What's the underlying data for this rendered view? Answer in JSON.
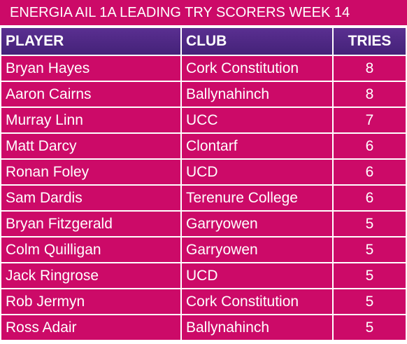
{
  "title": "ENERGIA AIL 1A LEADING TRY SCORERS WEEK 14",
  "table": {
    "header": [
      "PLAYER",
      "CLUB",
      "TRIES"
    ],
    "rows": [
      [
        "Bryan Hayes",
        "Cork Constitution",
        8
      ],
      [
        "Aaron Cairns",
        "Ballynahinch",
        8
      ],
      [
        "Murray Linn",
        "UCC",
        7
      ],
      [
        "Matt Darcy",
        "Clontarf",
        6
      ],
      [
        "Ronan Foley",
        "UCD",
        6
      ],
      [
        "Sam Dardis",
        "Terenure College",
        6
      ],
      [
        "Bryan Fitzgerald",
        "Garryowen",
        5
      ],
      [
        "Colm Quilligan",
        "Garryowen",
        5
      ],
      [
        "Jack Ringrose",
        "UCD",
        5
      ],
      [
        "Rob Jermyn",
        "Cork Constitution",
        5
      ],
      [
        "Ross Adair",
        "Ballynahinch",
        5
      ]
    ]
  }
}
